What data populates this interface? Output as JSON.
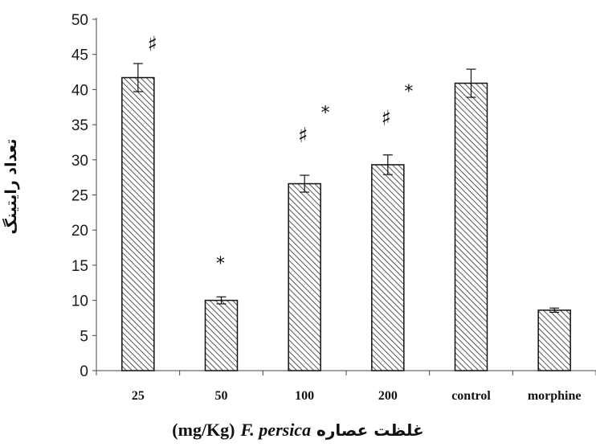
{
  "chart_data": {
    "type": "bar",
    "categories": [
      "25",
      "50",
      "100",
      "200",
      "control",
      "morphine"
    ],
    "values": [
      41.7,
      10.0,
      26.6,
      29.3,
      40.9,
      8.6
    ],
    "errors": [
      2.0,
      0.5,
      1.2,
      1.4,
      2.0,
      0.3
    ],
    "ylim": [
      0,
      50
    ],
    "yticks": [
      0,
      5,
      10,
      15,
      20,
      25,
      30,
      35,
      40,
      45,
      50
    ],
    "ylabel": "تعداد رایتینگ",
    "xlabel": {
      "unit": "(mg/Kg)",
      "species": "F. persica",
      "text": "غلظت عصاره"
    },
    "annotations": [
      {
        "category": "25",
        "text": "♯",
        "y": 46.5
      },
      {
        "category": "50",
        "text": "*",
        "y": 16
      },
      {
        "category": "100",
        "text": "♯",
        "y": 33.5
      },
      {
        "category": "100",
        "text": "*",
        "y": 37.5
      },
      {
        "category": "200",
        "text": "♯",
        "y": 36
      },
      {
        "category": "200",
        "text": "*",
        "y": 40.5
      }
    ],
    "bar_pattern": "diagonal-hatch",
    "grid": false
  }
}
